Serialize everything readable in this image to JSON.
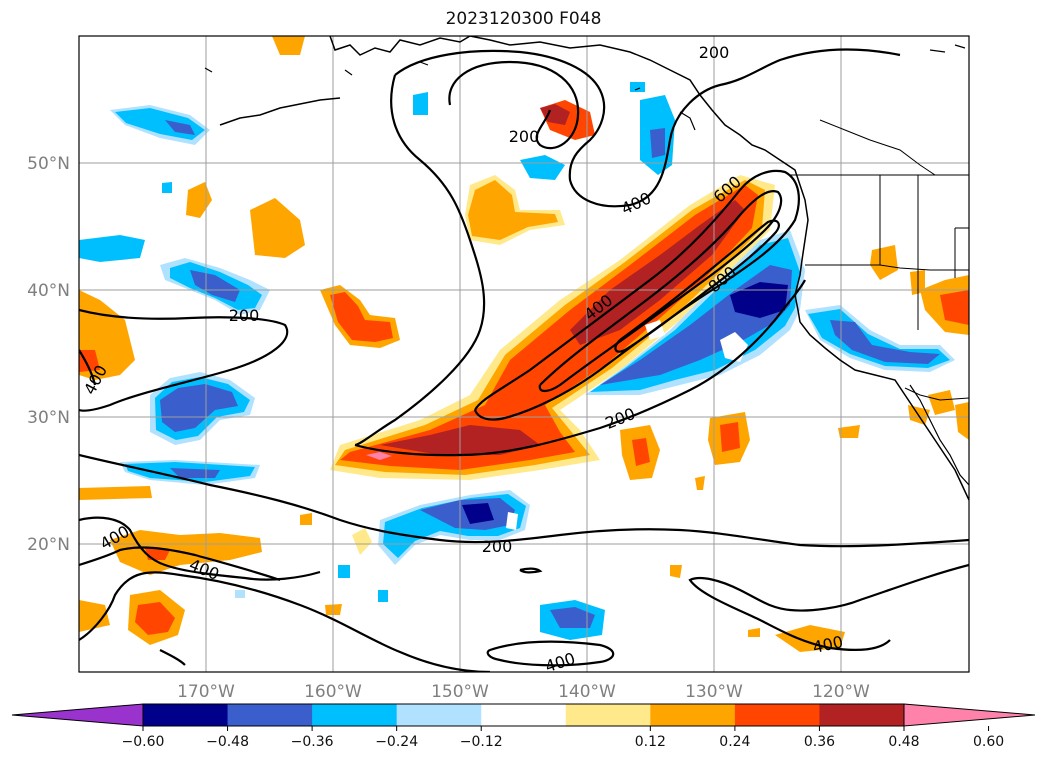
{
  "title": "2023120300 F048",
  "map": {
    "longitude_ticks": [
      "170°W",
      "160°W",
      "150°W",
      "140°W",
      "130°W",
      "120°W"
    ],
    "latitude_ticks": [
      "50°N",
      "40°N",
      "30°N",
      "20°N"
    ],
    "gridlines": true,
    "contour_field": {
      "line_color": "#000000",
      "labels": [
        "200",
        "200",
        "200",
        "200",
        "200",
        "400",
        "400",
        "400",
        "400",
        "400",
        "400",
        "400",
        "600",
        "600",
        "800",
        "200"
      ]
    },
    "shaded_field": {
      "features": [
        {
          "name": "positive-band",
          "levels": [
            "0.12",
            "0.24",
            "0.36",
            "0.48",
            "0.60"
          ]
        },
        {
          "name": "negative-band",
          "levels": [
            "-0.12",
            "-0.24",
            "-0.36",
            "-0.48",
            "-0.60"
          ]
        }
      ]
    }
  },
  "colorbar": {
    "labels": [
      "−0.60",
      "−0.48",
      "−0.36",
      "−0.24",
      "−0.12",
      "0.12",
      "0.24",
      "0.36",
      "0.48",
      "0.60"
    ],
    "colors": [
      "#9a32cd",
      "#00008b",
      "#3a5fcd",
      "#00bfff",
      "#b0e2ff",
      "#ffffff",
      "#ffe98a",
      "#ffa500",
      "#ff4500",
      "#b22222",
      "#ff82ab"
    ],
    "extend": "both"
  }
}
